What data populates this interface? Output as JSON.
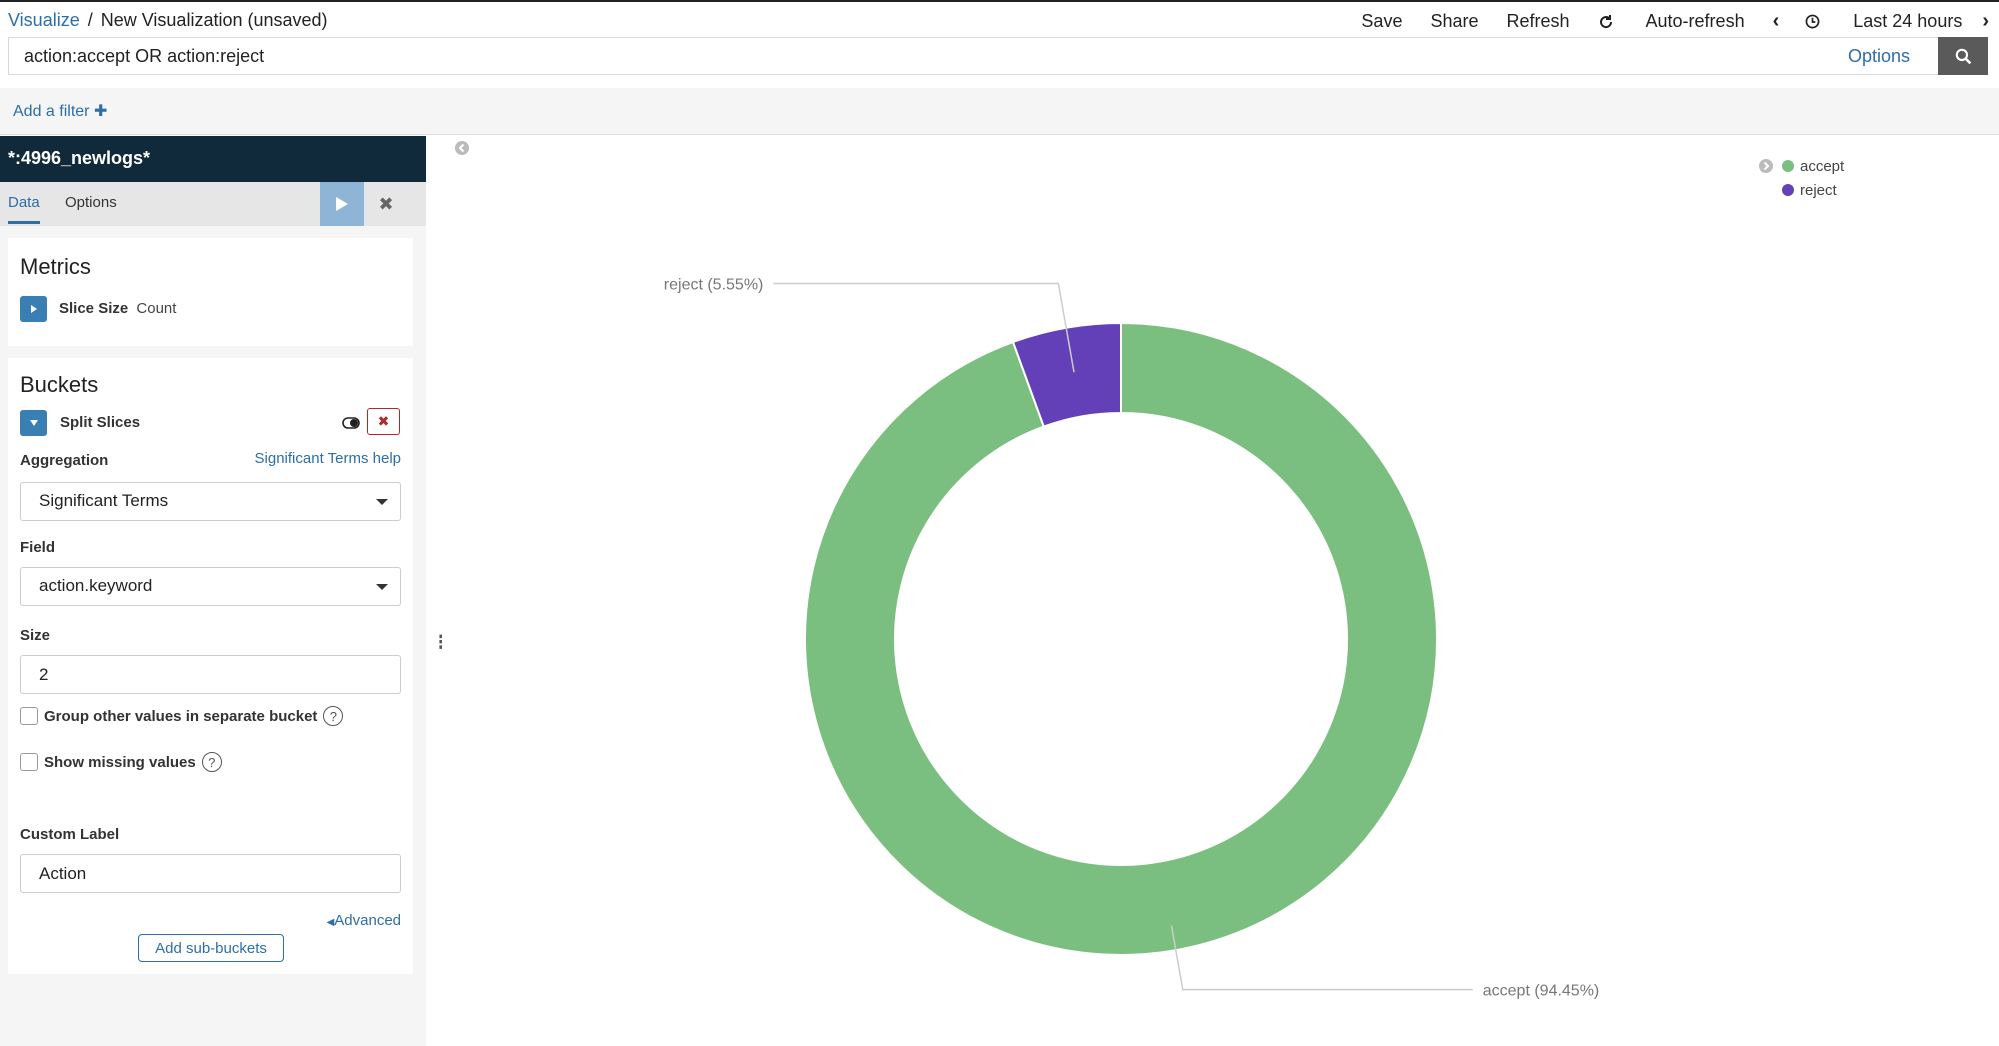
{
  "breadcrumb": {
    "root": "Visualize",
    "separator": "/",
    "current": "New Visualization (unsaved)"
  },
  "top_actions": {
    "save": "Save",
    "share": "Share",
    "refresh": "Refresh",
    "auto_refresh": "Auto-refresh",
    "time_range": "Last 24 hours"
  },
  "query": {
    "value": "action:accept OR action:reject",
    "options_label": "Options"
  },
  "filter": {
    "add_label": "Add a filter"
  },
  "sidebar": {
    "index_pattern": "*:4996_newlogs*",
    "tabs": [
      "Data",
      "Options"
    ],
    "metrics": {
      "title": "Metrics",
      "agg_label": "Slice Size",
      "agg_type": "Count"
    },
    "buckets": {
      "title": "Buckets",
      "agg_label": "Split Slices",
      "aggregation_label": "Aggregation",
      "aggregation_help": "Significant Terms help",
      "aggregation_value": "Significant Terms",
      "field_label": "Field",
      "field_value": "action.keyword",
      "size_label": "Size",
      "size_value": "2",
      "group_other_label": "Group other values in separate bucket",
      "show_missing_label": "Show missing values",
      "custom_label_label": "Custom Label",
      "custom_label_value": "Action",
      "advanced_label": "Advanced",
      "add_sub_buckets_label": "Add sub-buckets"
    }
  },
  "colors": {
    "accept": "#7bbf80",
    "reject": "#6440b8",
    "accent": "#2c6ea8",
    "header": "#112a3b"
  },
  "chart_data": {
    "type": "pie",
    "donut": true,
    "categories": [
      "accept",
      "reject"
    ],
    "values": [
      94.45,
      5.55
    ],
    "labels": [
      "accept (94.45%)",
      "reject (5.55%)"
    ],
    "legend": {
      "placement": "top-right",
      "entries": [
        "accept",
        "reject"
      ]
    }
  }
}
